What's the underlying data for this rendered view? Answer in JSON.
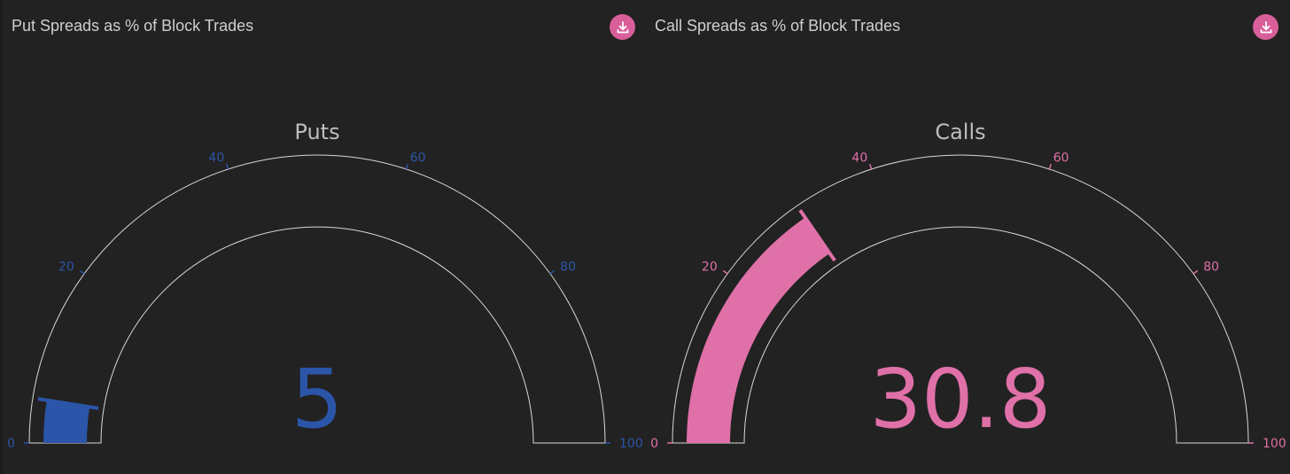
{
  "panels": [
    {
      "title": "Put Spreads as % of Block Trades",
      "download_icon": "download-icon",
      "accent_color": "#2b55a8"
    },
    {
      "title": "Call Spreads as % of Block Trades",
      "download_icon": "download-icon",
      "accent_color": "#e070a8"
    }
  ],
  "chart_data": [
    {
      "type": "gauge",
      "title": "Puts",
      "value": 5,
      "value_label": "5",
      "range": [
        0,
        100
      ],
      "ticks": [
        0,
        20,
        40,
        60,
        80,
        100
      ],
      "tick_labels": [
        "0",
        "20",
        "40",
        "60",
        "80",
        "100"
      ],
      "bar_color": "#2b55a8",
      "tick_color": "#2b55a8",
      "number_color": "#2b55a8"
    },
    {
      "type": "gauge",
      "title": "Calls",
      "value": 30.8,
      "value_label": "30.8",
      "range": [
        0,
        100
      ],
      "ticks": [
        0,
        20,
        40,
        60,
        80,
        100
      ],
      "tick_labels": [
        "0",
        "20",
        "40",
        "60",
        "80",
        "100"
      ],
      "bar_color": "#e070a8",
      "tick_color": "#e070a8",
      "number_color": "#e070a8"
    }
  ]
}
